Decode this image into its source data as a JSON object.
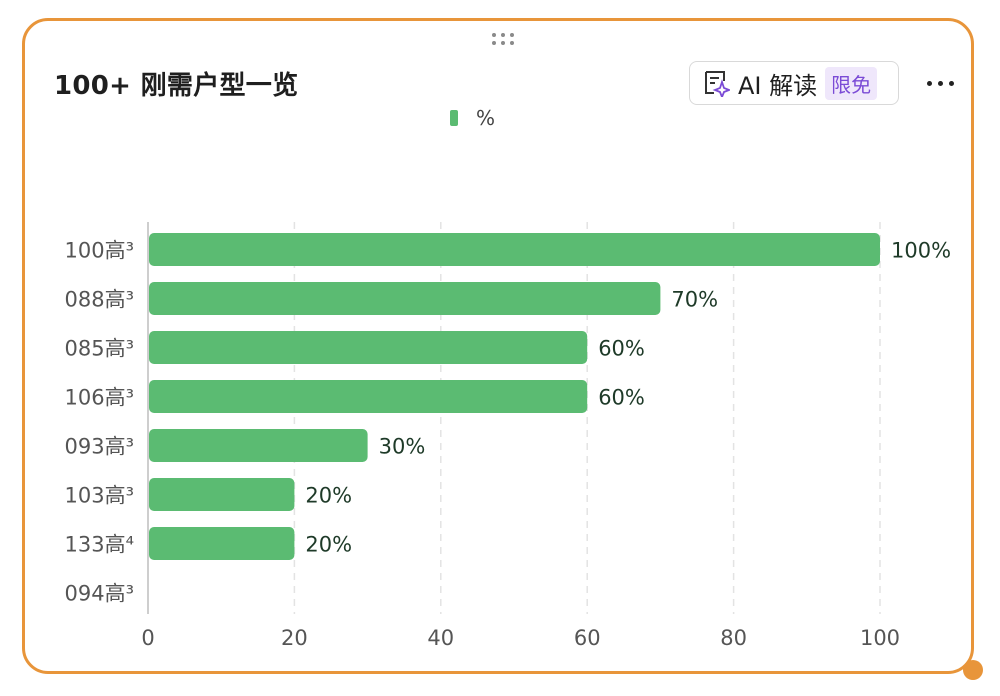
{
  "card": {
    "title": "100+ 刚需户型一览",
    "ai_button": {
      "label": "AI 解读",
      "badge": "限免"
    },
    "more_icon": "more-horizontal-icon",
    "drag_icon": "drag-handle-icon"
  },
  "colors": {
    "bar": "#5bbb72",
    "accent": "#e8953a",
    "badge": "#7b4bd6"
  },
  "chart_data": {
    "type": "bar",
    "orientation": "horizontal",
    "legend": [
      "%"
    ],
    "legend_position": "top-center",
    "categories": [
      "100高³",
      "088高³",
      "085高³",
      "106高³",
      "093高³",
      "103高³",
      "133高⁴",
      "094高³"
    ],
    "series": [
      {
        "name": "%",
        "values": [
          100,
          70,
          60,
          60,
          30,
          20,
          20,
          0
        ]
      }
    ],
    "data_labels": [
      "100%",
      "70%",
      "60%",
      "60%",
      "30%",
      "20%",
      "20%",
      ""
    ],
    "xlim": [
      0,
      100
    ],
    "xticks": [
      "0",
      "20",
      "40",
      "60",
      "80",
      "100"
    ],
    "grid": true
  }
}
